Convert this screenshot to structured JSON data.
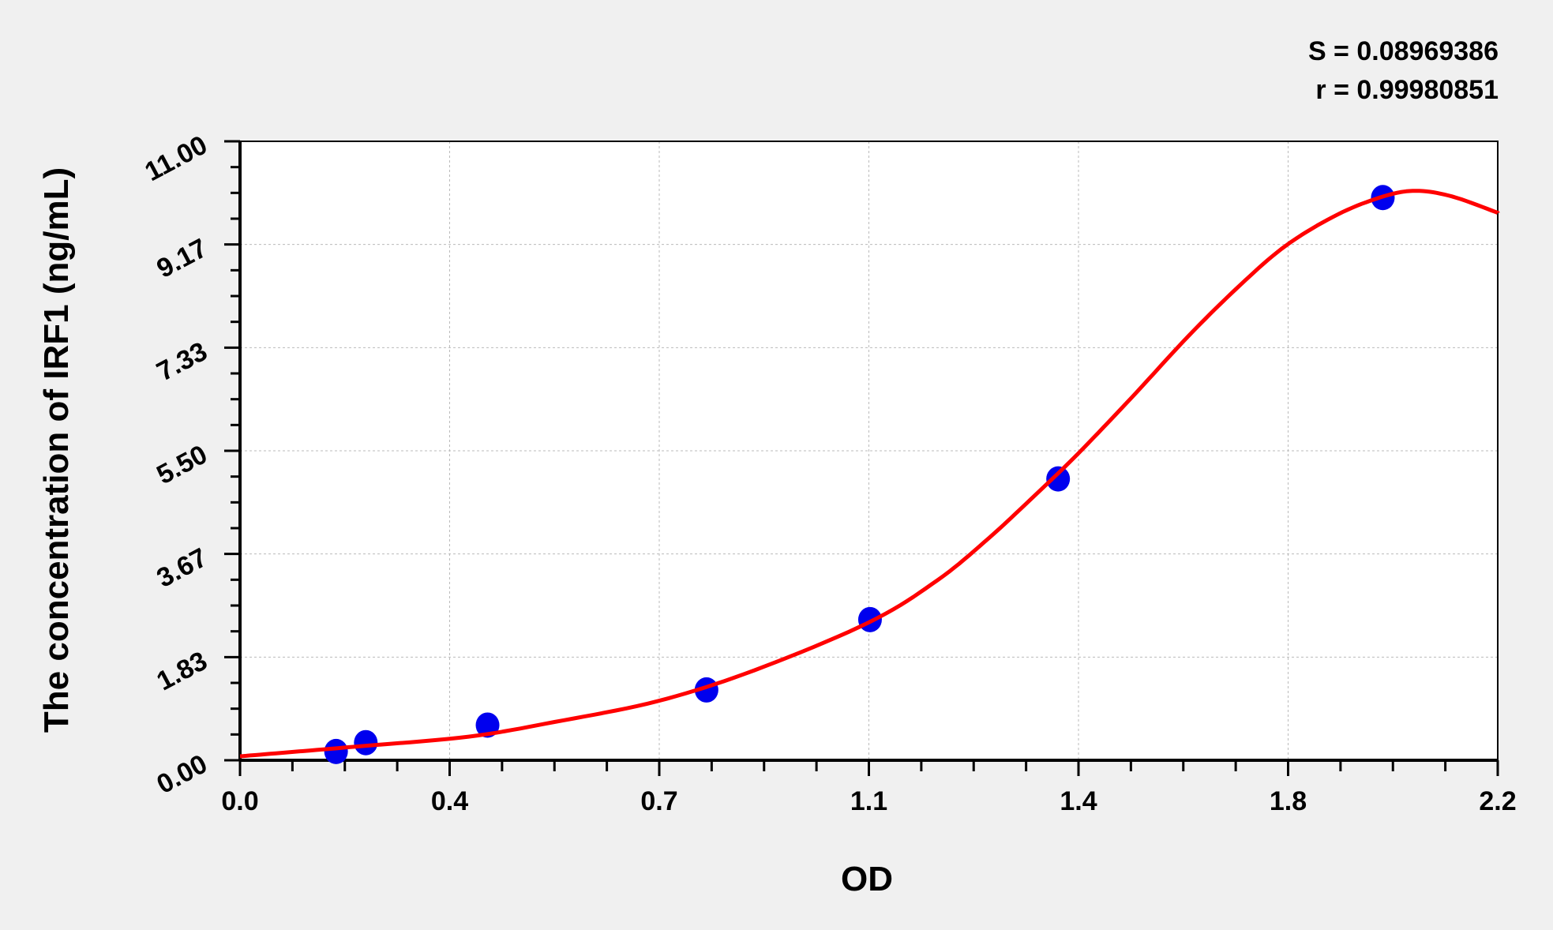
{
  "chart_data": {
    "type": "scatter",
    "title": "",
    "xlabel": "OD",
    "ylabel": "The concentration of IRF1 (ng/mL)",
    "xlim": [
      0,
      2.2
    ],
    "ylim": [
      0,
      11
    ],
    "x_ticks": [
      "0.0",
      "0.4",
      "0.7",
      "1.1",
      "1.4",
      "1.8",
      "2.2"
    ],
    "y_ticks": [
      "0.00",
      "1.83",
      "3.67",
      "5.50",
      "7.33",
      "9.17",
      "11.00"
    ],
    "grid": true,
    "stats": [
      "S = 0.08969386",
      "r = 0.99980851"
    ],
    "points": [
      {
        "x": 0.168,
        "y": 0.156
      },
      {
        "x": 0.22,
        "y": 0.313
      },
      {
        "x": 0.433,
        "y": 0.625
      },
      {
        "x": 0.816,
        "y": 1.25
      },
      {
        "x": 1.102,
        "y": 2.5
      },
      {
        "x": 1.431,
        "y": 5.0
      },
      {
        "x": 1.999,
        "y": 10.0
      }
    ],
    "fit_curve": [
      [
        0.0,
        0.07
      ],
      [
        0.083,
        0.14
      ],
      [
        0.2,
        0.24
      ],
      [
        0.4,
        0.42
      ],
      [
        0.55,
        0.68
      ],
      [
        0.73,
        1.05
      ],
      [
        0.9,
        1.6
      ],
      [
        1.1,
        2.45
      ],
      [
        1.22,
        3.2
      ],
      [
        1.31,
        3.95
      ],
      [
        1.4,
        4.8
      ],
      [
        1.466,
        5.45
      ],
      [
        1.56,
        6.45
      ],
      [
        1.66,
        7.55
      ],
      [
        1.75,
        8.45
      ],
      [
        1.83,
        9.15
      ],
      [
        1.92,
        9.7
      ],
      [
        2.0,
        10.02
      ],
      [
        2.057,
        10.12
      ],
      [
        2.12,
        10.02
      ],
      [
        2.2,
        9.73
      ]
    ],
    "colors": {
      "points": "#0000ee",
      "curve": "#ff0000",
      "background": "#f0f0f0",
      "plot": "#ffffff"
    }
  }
}
